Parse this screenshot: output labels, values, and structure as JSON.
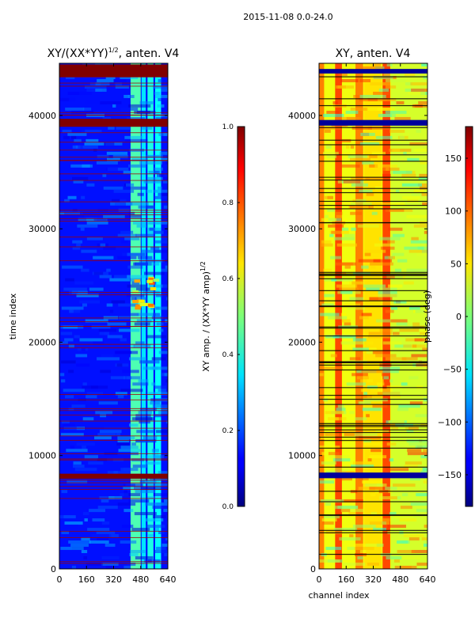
{
  "figure": {
    "suptitle": "2015-11-08 0.0-24.0"
  },
  "chart_data": [
    {
      "type": "heatmap",
      "title_main": "XY/(XX*YY)",
      "title_sup": "1/2",
      "title_suffix": ", anten. V4",
      "xlabel": "",
      "ylabel": "time index",
      "xlim": [
        0,
        640
      ],
      "ylim": [
        0,
        44600
      ],
      "xticks": [
        0,
        160,
        320,
        480,
        640
      ],
      "yticks": [
        0,
        10000,
        20000,
        30000,
        40000
      ],
      "colorbar": {
        "label_main": "XY amp. / (XX*YY amp)",
        "label_sup": "1/2",
        "range": [
          0.0,
          1.0
        ],
        "ticks": [
          "0.0",
          "0.2",
          "0.4",
          "0.6",
          "0.8",
          "1.0"
        ],
        "colormap": "jet"
      },
      "bands": [
        {
          "x": [
            420,
            480
          ],
          "v": 0.45
        },
        {
          "x": [
            485,
            510
          ],
          "v": 0.35
        },
        {
          "x": [
            520,
            555
          ],
          "v": 0.4
        },
        {
          "x": [
            565,
            600
          ],
          "v": 0.38
        }
      ],
      "saturated_rows": [
        {
          "y": [
            43400,
            44500
          ],
          "v": 1.0
        },
        {
          "y": [
            39000,
            39700
          ],
          "v": 1.0
        },
        {
          "y": [
            7950,
            8400
          ],
          "v": 1.0
        }
      ],
      "hot_region": {
        "x": [
          420,
          600
        ],
        "y": [
          22800,
          26000
        ],
        "v": 0.8
      }
    },
    {
      "type": "heatmap",
      "title": "XY, anten. V4",
      "xlabel": "channel index",
      "ylabel": "",
      "xlim": [
        0,
        640
      ],
      "ylim": [
        0,
        44600
      ],
      "xticks": [
        0,
        160,
        320,
        480,
        640
      ],
      "yticks": [
        0,
        10000,
        20000,
        30000,
        40000
      ],
      "colorbar": {
        "label": "phase (deg)",
        "range": [
          -180,
          180
        ],
        "ticks": [
          "150",
          "100",
          "50",
          "0",
          "−50",
          "−100",
          "−150"
        ],
        "tick_values": [
          150,
          100,
          50,
          0,
          -50,
          -100,
          -150
        ],
        "colormap": "jet"
      },
      "bands": [
        {
          "x": [
            0,
            30
          ],
          "v": 90
        },
        {
          "x": [
            35,
            90
          ],
          "v": 40
        },
        {
          "x": [
            95,
            135
          ],
          "v": 110
        },
        {
          "x": [
            140,
            210
          ],
          "v": 40
        },
        {
          "x": [
            215,
            260
          ],
          "v": 90
        },
        {
          "x": [
            265,
            370
          ],
          "v": 55
        },
        {
          "x": [
            375,
            420
          ],
          "v": 110
        },
        {
          "x": [
            425,
            640
          ],
          "v": 30
        }
      ],
      "saturated_rows": [
        {
          "y": [
            43700,
            44100
          ],
          "v": -170
        },
        {
          "y": [
            39100,
            39600
          ],
          "v": -170
        },
        {
          "y": [
            8000,
            8500
          ],
          "v": -170
        }
      ]
    }
  ]
}
